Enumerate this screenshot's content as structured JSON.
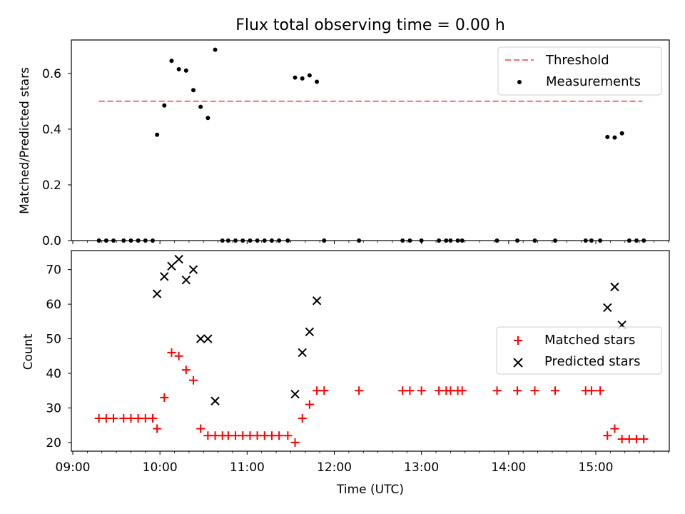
{
  "title": "Flux total observing time = 0.00 h",
  "chart_data": [
    {
      "type": "scatter",
      "ylabel": "Matched/Predicted stars",
      "xlim": [
        "09:00",
        "15:50"
      ],
      "ylim": [
        0,
        0.72
      ],
      "yticks": [
        "0.0",
        "0.2",
        "0.4",
        "0.6"
      ],
      "grid": false,
      "legend_position": "top-right",
      "series": [
        {
          "name": "Threshold",
          "kind": "line",
          "style": "dashed",
          "color": "#ff6f6f",
          "points": [
            [
              "09:18",
              0.5
            ],
            [
              "15:32",
              0.5
            ]
          ]
        },
        {
          "name": "Measurements",
          "kind": "scatter",
          "marker": "dot",
          "color": "#000000",
          "points": [
            [
              "09:18",
              0.0
            ],
            [
              "09:23",
              0.0
            ],
            [
              "09:28",
              0.0
            ],
            [
              "09:35",
              0.0
            ],
            [
              "09:40",
              0.0
            ],
            [
              "09:45",
              0.0
            ],
            [
              "09:50",
              0.0
            ],
            [
              "09:55",
              0.0
            ],
            [
              "09:58",
              0.38
            ],
            [
              "10:03",
              0.485
            ],
            [
              "10:08",
              0.645
            ],
            [
              "10:13",
              0.615
            ],
            [
              "10:18",
              0.61
            ],
            [
              "10:23",
              0.54
            ],
            [
              "10:28",
              0.48
            ],
            [
              "10:33",
              0.44
            ],
            [
              "10:38",
              0.685
            ],
            [
              "10:43",
              0.0
            ],
            [
              "10:47",
              0.0
            ],
            [
              "10:52",
              0.0
            ],
            [
              "10:57",
              0.0
            ],
            [
              "11:02",
              0.0
            ],
            [
              "11:07",
              0.0
            ],
            [
              "11:12",
              0.0
            ],
            [
              "11:17",
              0.0
            ],
            [
              "11:22",
              0.0
            ],
            [
              "11:28",
              0.0
            ],
            [
              "11:33",
              0.585
            ],
            [
              "11:38",
              0.582
            ],
            [
              "11:43",
              0.593
            ],
            [
              "11:48",
              0.57
            ],
            [
              "11:53",
              0.0
            ],
            [
              "12:17",
              0.0
            ],
            [
              "12:47",
              0.0
            ],
            [
              "12:52",
              0.0
            ],
            [
              "13:00",
              0.0
            ],
            [
              "13:12",
              0.0
            ],
            [
              "13:17",
              0.0
            ],
            [
              "13:20",
              0.0
            ],
            [
              "13:25",
              0.0
            ],
            [
              "13:28",
              0.0
            ],
            [
              "13:52",
              0.0
            ],
            [
              "14:06",
              0.0
            ],
            [
              "14:18",
              0.0
            ],
            [
              "14:32",
              0.0
            ],
            [
              "14:53",
              0.0
            ],
            [
              "14:57",
              0.0
            ],
            [
              "15:03",
              0.0
            ],
            [
              "15:08",
              0.372
            ],
            [
              "15:13",
              0.37
            ],
            [
              "15:18",
              0.385
            ],
            [
              "15:23",
              0.0
            ],
            [
              "15:28",
              0.0
            ],
            [
              "15:33",
              0.0
            ]
          ]
        }
      ]
    },
    {
      "type": "scatter",
      "xlabel": "Time (UTC)",
      "ylabel": "Count",
      "xlim": [
        "09:00",
        "15:50"
      ],
      "ylim": [
        17.5,
        75.5
      ],
      "xticks": [
        "09:00",
        "10:00",
        "11:00",
        "12:00",
        "13:00",
        "14:00",
        "15:00"
      ],
      "yticks": [
        "20",
        "30",
        "40",
        "50",
        "60",
        "70"
      ],
      "grid": false,
      "legend_position": "center-right",
      "series": [
        {
          "name": "Matched stars",
          "kind": "scatter",
          "marker": "plus",
          "color": "#ff0000",
          "points": [
            [
              "09:18",
              27
            ],
            [
              "09:23",
              27
            ],
            [
              "09:28",
              27
            ],
            [
              "09:35",
              27
            ],
            [
              "09:40",
              27
            ],
            [
              "09:45",
              27
            ],
            [
              "09:50",
              27
            ],
            [
              "09:55",
              27
            ],
            [
              "09:58",
              24
            ],
            [
              "10:03",
              33
            ],
            [
              "10:08",
              46
            ],
            [
              "10:13",
              45
            ],
            [
              "10:18",
              41
            ],
            [
              "10:23",
              38
            ],
            [
              "10:28",
              24
            ],
            [
              "10:33",
              22
            ],
            [
              "10:38",
              22
            ],
            [
              "10:43",
              22
            ],
            [
              "10:47",
              22
            ],
            [
              "10:52",
              22
            ],
            [
              "10:57",
              22
            ],
            [
              "11:02",
              22
            ],
            [
              "11:07",
              22
            ],
            [
              "11:12",
              22
            ],
            [
              "11:17",
              22
            ],
            [
              "11:22",
              22
            ],
            [
              "11:28",
              22
            ],
            [
              "11:33",
              20
            ],
            [
              "11:38",
              27
            ],
            [
              "11:43",
              31
            ],
            [
              "11:48",
              35
            ],
            [
              "11:53",
              35
            ],
            [
              "12:17",
              35
            ],
            [
              "12:47",
              35
            ],
            [
              "12:52",
              35
            ],
            [
              "13:00",
              35
            ],
            [
              "13:12",
              35
            ],
            [
              "13:17",
              35
            ],
            [
              "13:20",
              35
            ],
            [
              "13:25",
              35
            ],
            [
              "13:28",
              35
            ],
            [
              "13:52",
              35
            ],
            [
              "14:06",
              35
            ],
            [
              "14:18",
              35
            ],
            [
              "14:32",
              35
            ],
            [
              "14:53",
              35
            ],
            [
              "14:57",
              35
            ],
            [
              "15:03",
              35
            ],
            [
              "15:08",
              22
            ],
            [
              "15:13",
              24
            ],
            [
              "15:18",
              21
            ],
            [
              "15:23",
              21
            ],
            [
              "15:28",
              21
            ],
            [
              "15:33",
              21
            ]
          ]
        },
        {
          "name": "Predicted stars",
          "kind": "scatter",
          "marker": "x",
          "color": "#000000",
          "points": [
            [
              "09:58",
              63
            ],
            [
              "10:03",
              68
            ],
            [
              "10:08",
              71
            ],
            [
              "10:13",
              73
            ],
            [
              "10:18",
              67
            ],
            [
              "10:23",
              70
            ],
            [
              "10:28",
              50
            ],
            [
              "10:33",
              50
            ],
            [
              "10:38",
              32
            ],
            [
              "11:33",
              34
            ],
            [
              "11:38",
              46
            ],
            [
              "11:43",
              52
            ],
            [
              "11:48",
              61
            ],
            [
              "15:08",
              59
            ],
            [
              "15:13",
              65
            ],
            [
              "15:18",
              54
            ]
          ]
        }
      ]
    }
  ]
}
